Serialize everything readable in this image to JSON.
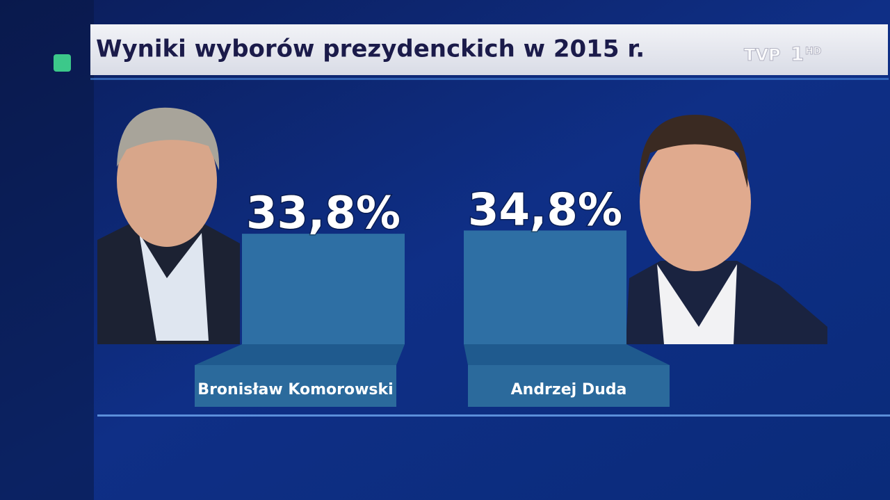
{
  "chart_data": {
    "type": "bar",
    "title": "Wyniki wyborów prezydenckich w 2015 r.",
    "categories": [
      "Bronisław Komorowski",
      "Andrzej Duda"
    ],
    "values": [
      33.8,
      34.8
    ],
    "value_labels": [
      "33,8%",
      "34,8%"
    ],
    "color": "#2e6fa4"
  },
  "channel": {
    "name": "TVP",
    "number": "1",
    "quality": "HD"
  }
}
